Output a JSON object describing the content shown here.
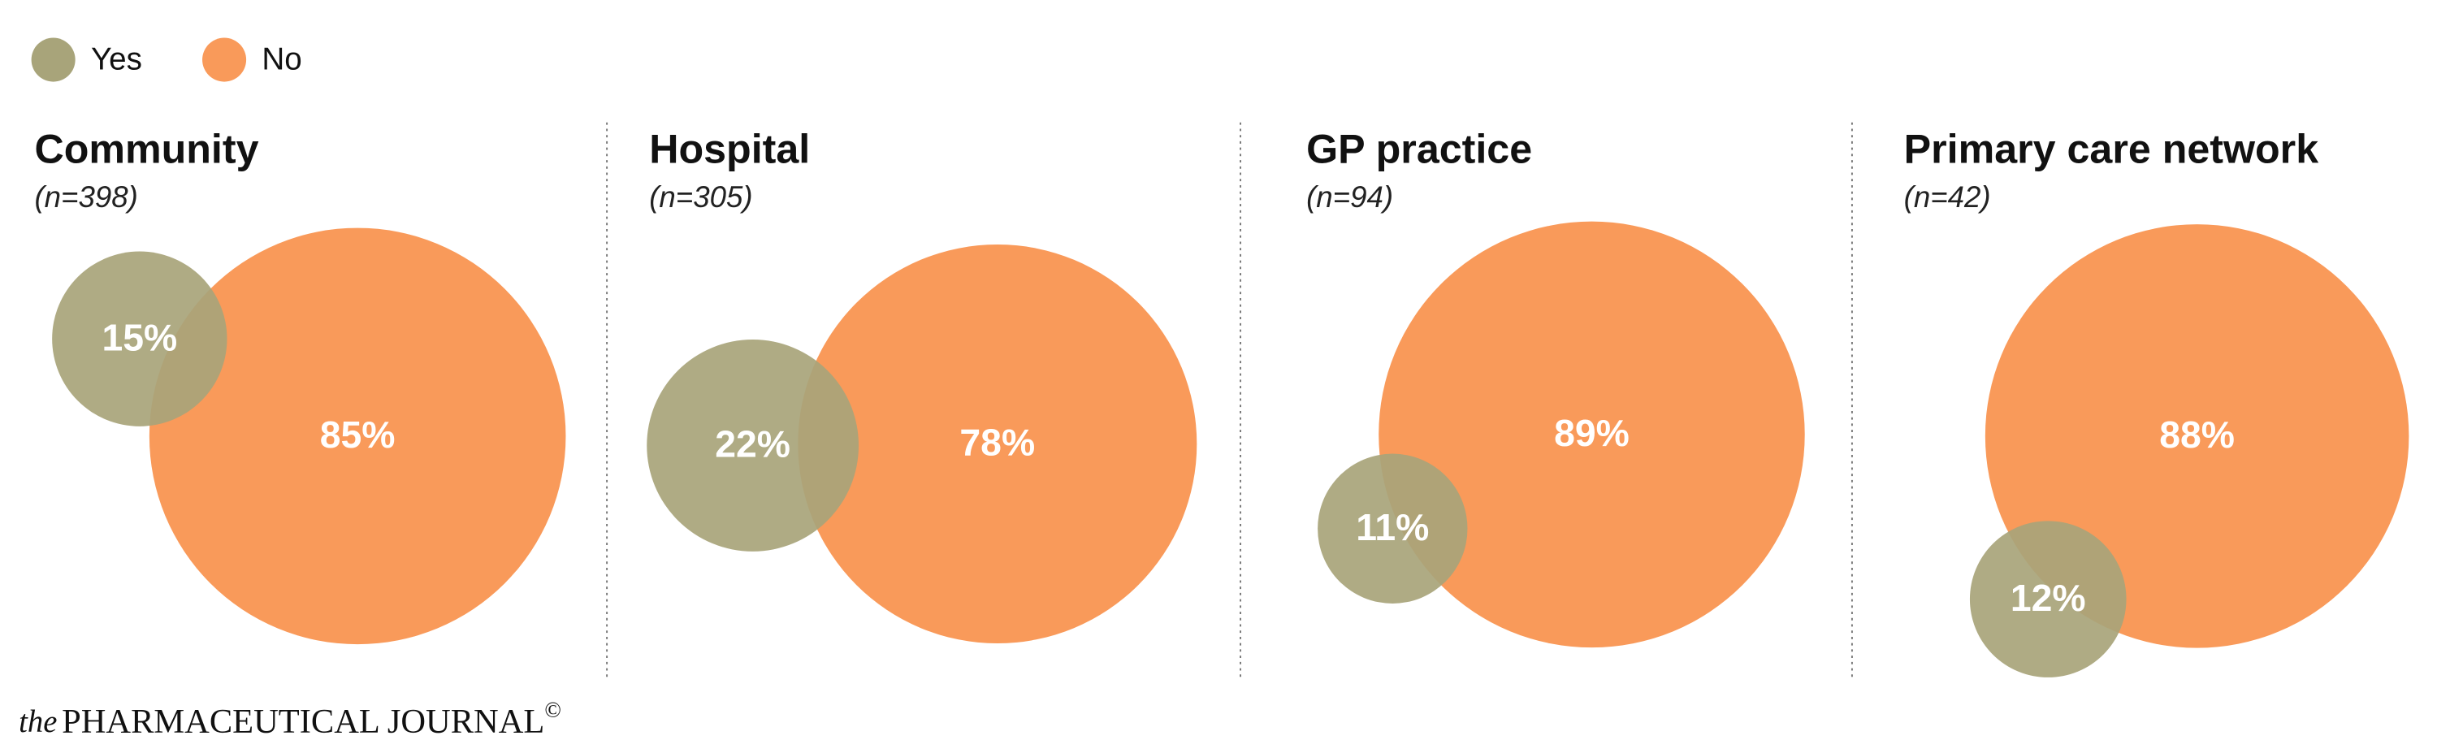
{
  "chart_data": {
    "type": "bubble",
    "categories": [
      "Community",
      "Hospital",
      "GP practice",
      "Primary care network"
    ],
    "subtitles": [
      "(n=398)",
      "(n=305)",
      "(n=94)",
      "(n=42)"
    ],
    "series": [
      {
        "name": "Yes",
        "color": "#a8a47a",
        "values": [
          15,
          22,
          11,
          12
        ],
        "value_labels": [
          "15%",
          "22%",
          "11%",
          "12%"
        ]
      },
      {
        "name": "No",
        "color": "#f99a5a",
        "values": [
          85,
          78,
          89,
          88
        ],
        "value_labels": [
          "85%",
          "78%",
          "89%",
          "88%"
        ]
      }
    ]
  },
  "footer": {
    "prefix": "the",
    "name": "PHARMACEUTICAL JOURNAL",
    "mark": "©"
  }
}
